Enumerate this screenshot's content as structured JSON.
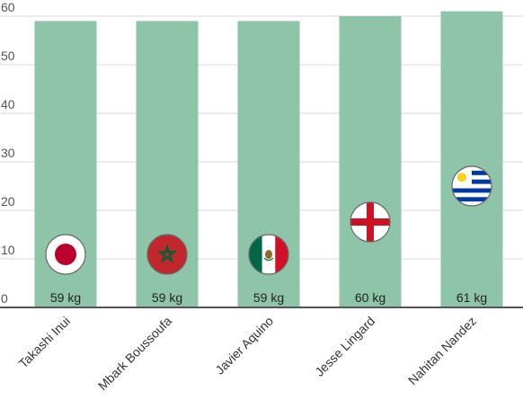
{
  "chart_data": {
    "type": "bar",
    "categories": [
      "Takashi Inui",
      "Mbark Boussoufa",
      "Javier Aquino",
      "Jesse Lingard",
      "Nahitan Nandez"
    ],
    "values": [
      59,
      59,
      59,
      60,
      61
    ],
    "value_labels": [
      "59 kg",
      "59 kg",
      "59 kg",
      "60 kg",
      "61 kg"
    ],
    "flags": [
      "japan-flag-icon",
      "morocco-flag-icon",
      "mexico-flag-icon",
      "england-flag-icon",
      "uruguay-flag-icon"
    ],
    "title": "",
    "xlabel": "",
    "ylabel": "",
    "ylim": [
      0,
      60
    ],
    "yticks": [
      0,
      10,
      20,
      30,
      40,
      50,
      60
    ],
    "grid": true,
    "bar_color": "#8ec4a7"
  }
}
